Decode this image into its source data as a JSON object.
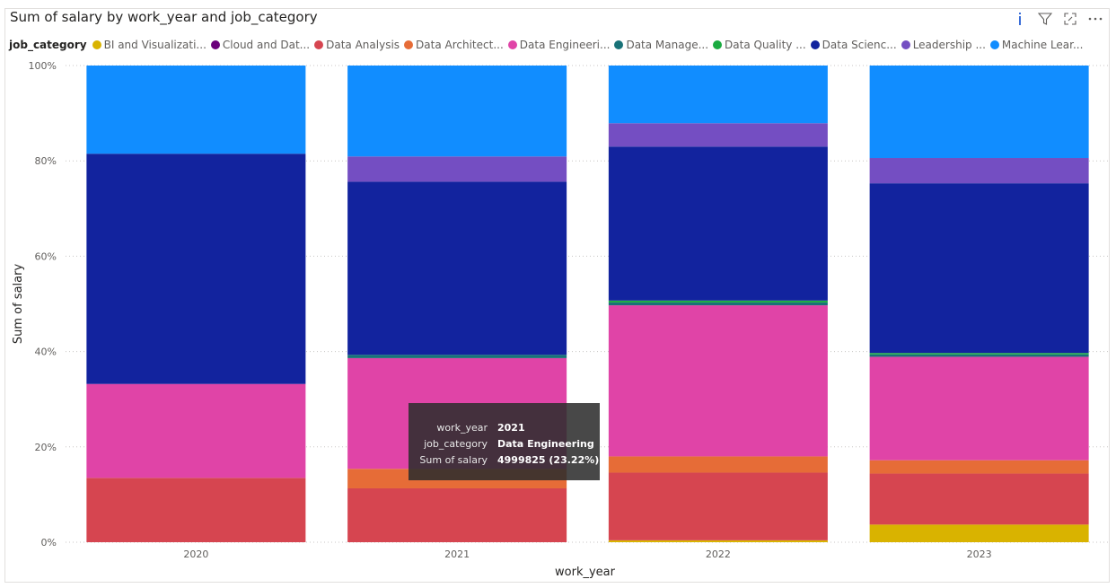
{
  "title": "Sum of salary by work_year and job_category",
  "header_icons": [
    "info-icon",
    "filter-icon",
    "focus-mode-icon",
    "more-options-icon"
  ],
  "legend": {
    "title": "job_category",
    "items": [
      {
        "label": "BI and Visualizati...",
        "color": "#d9b300"
      },
      {
        "label": "Cloud and Dat...",
        "color": "#6b007b"
      },
      {
        "label": "Data Analysis",
        "color": "#d64550"
      },
      {
        "label": "Data Architect...",
        "color": "#e66c37"
      },
      {
        "label": "Data Engineeri...",
        "color": "#e044a7"
      },
      {
        "label": "Data Manage...",
        "color": "#197278"
      },
      {
        "label": "Data Quality ...",
        "color": "#1aab40"
      },
      {
        "label": "Data Scienc...",
        "color": "#12239e"
      },
      {
        "label": "Leadership ...",
        "color": "#744ec2"
      },
      {
        "label": "Machine Lear...",
        "color": "#118dff"
      }
    ]
  },
  "tooltip": {
    "rows": [
      {
        "key": "work_year",
        "value": "2021"
      },
      {
        "key": "job_category",
        "value": "Data Engineering"
      },
      {
        "key": "Sum of salary",
        "value": "4999825 (23.22%)"
      }
    ]
  },
  "chart_data": {
    "type": "bar",
    "stacked": "100%",
    "xlabel": "work_year",
    "ylabel": "Sum of salary",
    "categories": [
      "2020",
      "2021",
      "2022",
      "2023"
    ],
    "yticks": [
      "0%",
      "20%",
      "40%",
      "60%",
      "80%",
      "100%"
    ],
    "ylim": [
      0,
      100
    ],
    "grid": true,
    "legend_position": "top-left",
    "series": [
      {
        "name": "BI and Visualizati...",
        "color": "#d9b300",
        "values": [
          0,
          0,
          0.4,
          3.7
        ]
      },
      {
        "name": "Cloud and Dat...",
        "color": "#6b007b",
        "values": [
          0,
          0,
          0,
          0
        ]
      },
      {
        "name": "Data Analysis",
        "color": "#d64550",
        "values": [
          13.5,
          11.3,
          14.2,
          10.7
        ]
      },
      {
        "name": "Data Architect...",
        "color": "#e66c37",
        "values": [
          0,
          4.1,
          3.4,
          2.8
        ]
      },
      {
        "name": "Data Engineeri...",
        "color": "#e044a7",
        "values": [
          19.7,
          23.22,
          31.7,
          21.7
        ]
      },
      {
        "name": "Data Manage...",
        "color": "#197278",
        "values": [
          0,
          0.7,
          0.6,
          0.5
        ]
      },
      {
        "name": "Data Quality ...",
        "color": "#1aab40",
        "values": [
          0,
          0,
          0.4,
          0.3
        ]
      },
      {
        "name": "Data Scienc...",
        "color": "#12239e",
        "values": [
          48.3,
          36.3,
          32.3,
          35.6
        ]
      },
      {
        "name": "Leadership ...",
        "color": "#744ec2",
        "values": [
          0,
          5.3,
          4.9,
          5.3
        ]
      },
      {
        "name": "Machine Lear...",
        "color": "#118dff",
        "values": [
          18.5,
          19.07,
          12.1,
          19.4
        ]
      }
    ]
  }
}
